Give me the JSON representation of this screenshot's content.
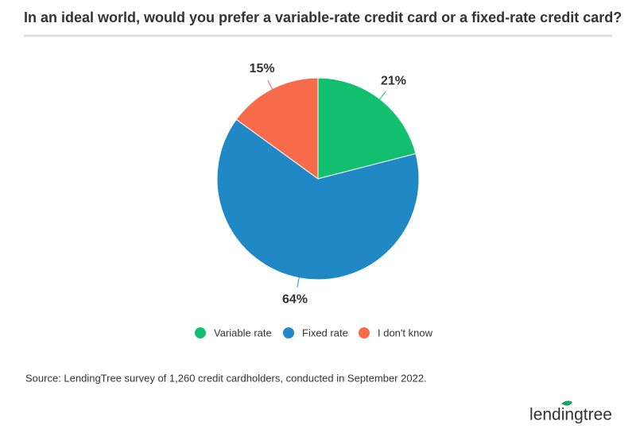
{
  "chart_data": {
    "type": "pie",
    "title": "In an ideal world, would you prefer a variable-rate credit card or a fixed-rate credit card?",
    "categories": [
      "Variable rate",
      "Fixed rate",
      "I don't know"
    ],
    "values": [
      21,
      64,
      15
    ],
    "value_labels": [
      "21%",
      "64%",
      "15%"
    ],
    "colors": [
      "#13c06f",
      "#2088c5",
      "#f76b4b"
    ],
    "legend": "bottom",
    "source": "Source: LendingTree survey of 1,260 credit cardholders, conducted in September 2022.",
    "logo": "lendingtree"
  }
}
